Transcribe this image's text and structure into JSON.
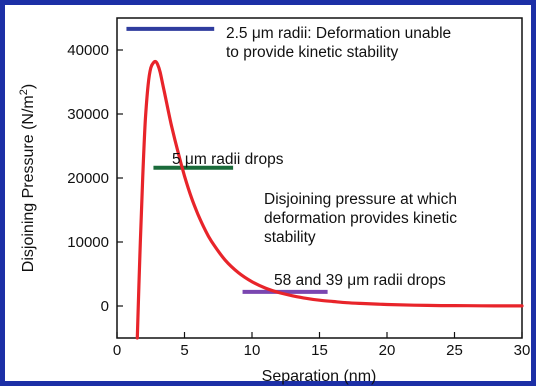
{
  "chart_data": {
    "type": "line",
    "title": "",
    "xlabel": "Separation (nm)",
    "ylabel": "Disjoining Pressure (N/m²)",
    "ylabel_base": "Disjoining Pressure (N/m",
    "ylabel_sup": "2",
    "ylabel_tail": ")",
    "xlim": [
      0,
      30
    ],
    "ylim": [
      -5000,
      45000
    ],
    "xticks": [
      0,
      5,
      10,
      15,
      20,
      25,
      30
    ],
    "yticks": [
      0,
      10000,
      20000,
      30000,
      40000
    ],
    "grid": false,
    "series": [
      {
        "color": "#e8242a",
        "x": [
          1.5,
          1.7,
          1.9,
          2.1,
          2.3,
          2.5,
          2.7,
          2.85,
          3.0,
          3.2,
          3.5,
          4.0,
          4.5,
          5.0,
          5.5,
          6.0,
          6.5,
          7.0,
          8.0,
          9.0,
          10.0,
          11.0,
          12.0,
          13.0,
          14.0,
          15.0,
          16.0,
          17.0,
          18.0,
          20.0,
          22.0,
          24.0,
          26.0,
          28.0,
          30.0
        ],
        "y": [
          -5000,
          8000,
          20000,
          29000,
          34500,
          37200,
          38000,
          38200,
          37800,
          36500,
          33500,
          28500,
          24200,
          20300,
          17000,
          14300,
          12000,
          10100,
          7200,
          5200,
          3800,
          2800,
          2100,
          1600,
          1200,
          900,
          700,
          520,
          400,
          230,
          130,
          70,
          40,
          20,
          10
        ]
      }
    ],
    "annotations": [
      {
        "text": "2.5 μm radii: Deformation unable",
        "text2": "to provide kinetic stability",
        "line_x": [
          0.7,
          7.2
        ],
        "line_y": 43300,
        "color": "#2f3c9e"
      },
      {
        "text": "5 μm radii drops",
        "line_x": [
          2.7,
          8.6
        ],
        "line_y": 21600,
        "color": "#1a6b3a"
      },
      {
        "text": "58 and 39 μm radii drops",
        "line_x": [
          9.3,
          15.6
        ],
        "line_y": 2200,
        "color": "#7a46b0"
      },
      {
        "text": "Disjoining pressure at which",
        "text2": "deformation provides kinetic",
        "text3": "stability"
      }
    ]
  }
}
